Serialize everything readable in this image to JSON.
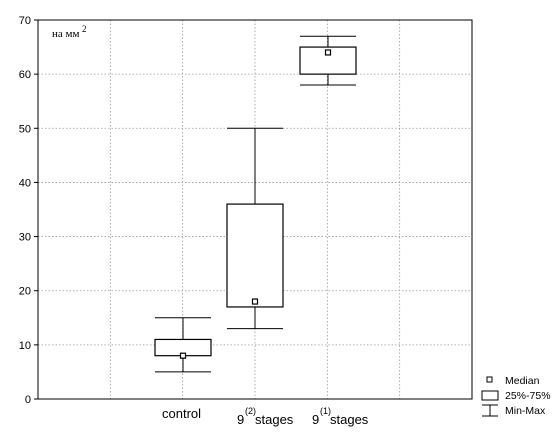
{
  "chart_data": {
    "type": "boxplot",
    "unit_label": "на мм",
    "unit_superscript": "2",
    "ylim": [
      0,
      70
    ],
    "y_ticks": [
      "0",
      "10",
      "20",
      "30",
      "40",
      "50",
      "60",
      "70"
    ],
    "grid": true,
    "legend_position": "bottom-right",
    "categories": [
      {
        "label": "control",
        "superscript": ""
      },
      {
        "label": "stages",
        "prefix": "9",
        "superscript": "(2)"
      },
      {
        "label": "stages",
        "prefix": "9",
        "superscript": "(1)"
      }
    ],
    "series": [
      {
        "min": 5,
        "q1": 8,
        "median": 8,
        "q3": 11,
        "max": 15
      },
      {
        "min": 13,
        "q1": 17,
        "median": 18,
        "q3": 36,
        "max": 50
      },
      {
        "min": 58,
        "q1": 60,
        "median": 64,
        "q3": 65,
        "max": 67
      }
    ],
    "legend": {
      "median": "Median",
      "box": "25%-75%",
      "whisker": "Min-Max"
    }
  }
}
